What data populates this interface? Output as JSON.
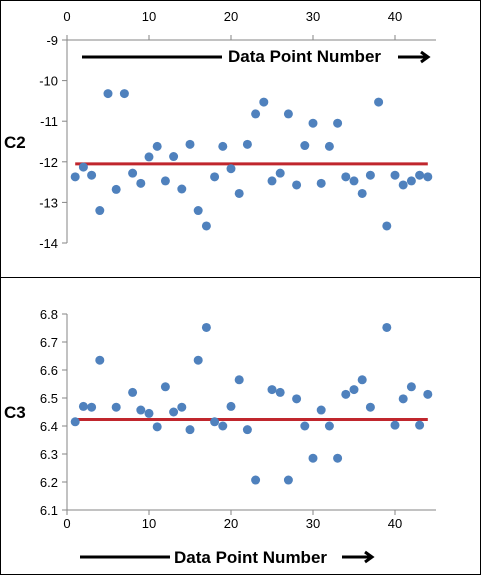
{
  "colors": {
    "marker": "#4f81bd",
    "ref_line": "#c0262d",
    "axis": "#868686",
    "frame": "#000000",
    "background": "#ffffff"
  },
  "chart_data": [
    {
      "type": "scatter",
      "title": "",
      "ylabel": "C2",
      "xlabel": "",
      "annotation": "Data Point Number",
      "x_tick_labels": [
        "0",
        "10",
        "20",
        "30",
        "40"
      ],
      "y_tick_labels": [
        "-9",
        "-10",
        "-11",
        "-12",
        "-13",
        "-14"
      ],
      "xlim": [
        0,
        45
      ],
      "ylim": [
        -14,
        -9
      ],
      "x_ticks": [
        0,
        10,
        20,
        30,
        40
      ],
      "y_ticks": [
        -9,
        -10,
        -11,
        -12,
        -13,
        -14
      ],
      "x_axis_position": "top",
      "grid": false,
      "reference_line": -12.05,
      "x": [
        1,
        2,
        3,
        4,
        5,
        6,
        7,
        8,
        9,
        10,
        11,
        12,
        13,
        14,
        15,
        16,
        17,
        18,
        19,
        20,
        21,
        22,
        23,
        24,
        25,
        26,
        27,
        28,
        29,
        30,
        31,
        32,
        33,
        34,
        35,
        36,
        37,
        38,
        39,
        40,
        41,
        42,
        43,
        44
      ],
      "y": [
        -12.37,
        -12.13,
        -12.33,
        -13.2,
        -10.32,
        -12.68,
        -10.32,
        -12.28,
        -12.53,
        -11.88,
        -11.62,
        -12.47,
        -11.87,
        -12.67,
        -11.57,
        -13.2,
        -13.58,
        -12.37,
        -11.62,
        -12.17,
        -12.78,
        -11.57,
        -10.82,
        -10.53,
        -12.47,
        -12.28,
        -10.82,
        -12.57,
        -11.6,
        -11.05,
        -12.53,
        -11.62,
        -11.05,
        -12.37,
        -12.47,
        -12.78,
        -12.33,
        -10.53,
        -13.58,
        -12.33,
        -12.57,
        -12.47,
        -12.33,
        -12.37
      ]
    },
    {
      "type": "scatter",
      "title": "",
      "ylabel": "C3",
      "xlabel": "",
      "annotation": "Data Point Number",
      "x_tick_labels": [
        "0",
        "10",
        "20",
        "30",
        "40"
      ],
      "y_tick_labels": [
        "6.8",
        "6.7",
        "6.6",
        "6.5",
        "6.4",
        "6.3",
        "6.2",
        "6.1"
      ],
      "xlim": [
        0,
        45
      ],
      "ylim": [
        6.1,
        6.8
      ],
      "x_ticks": [
        0,
        10,
        20,
        30,
        40
      ],
      "y_ticks": [
        6.8,
        6.7,
        6.6,
        6.5,
        6.4,
        6.3,
        6.2,
        6.1
      ],
      "x_axis_position": "bottom",
      "grid": false,
      "reference_line": 6.423,
      "x": [
        1,
        2,
        3,
        4,
        5,
        6,
        7,
        8,
        9,
        10,
        11,
        12,
        13,
        14,
        15,
        16,
        17,
        18,
        19,
        20,
        21,
        22,
        23,
        24,
        25,
        26,
        27,
        28,
        29,
        30,
        31,
        32,
        33,
        34,
        35,
        36,
        37,
        38,
        39,
        40,
        41,
        42,
        43,
        44
      ],
      "y": [
        6.415,
        6.47,
        6.467,
        6.635,
        null,
        6.467,
        null,
        6.52,
        6.457,
        6.445,
        6.397,
        6.54,
        6.45,
        6.467,
        6.387,
        6.635,
        6.752,
        6.415,
        6.4,
        6.47,
        6.565,
        6.387,
        6.207,
        null,
        6.53,
        6.52,
        6.207,
        6.497,
        6.4,
        6.285,
        6.457,
        6.4,
        6.285,
        6.513,
        6.53,
        6.565,
        6.467,
        null,
        6.752,
        6.403,
        6.497,
        6.54,
        6.403,
        6.513
      ]
    }
  ]
}
